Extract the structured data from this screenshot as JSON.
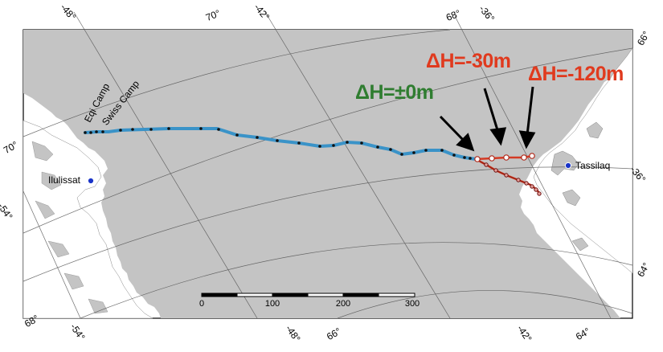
{
  "graticule_labels": {
    "top": [
      "-48°",
      "70°",
      "-42°",
      "68°",
      "-36°"
    ],
    "right": [
      "66°",
      "-36°",
      "64°"
    ],
    "left": [
      "70°",
      "-54°"
    ],
    "bottom": [
      "68°",
      "-54°",
      "-48°",
      "66°",
      "-42°",
      "64°"
    ]
  },
  "places": {
    "eqi_camp": "Eqi Camp",
    "swiss_camp": "Swiss Camp",
    "ilulissat": "Ilulissat",
    "tasiilaq": "Tassilaq"
  },
  "annotations": {
    "dh_zero": "ΔH=±0m",
    "dh_minus30": "ΔH=-30m",
    "dh_minus120": "ΔH=-120m"
  },
  "scale_bar": {
    "ticks": [
      "0",
      "100",
      "200",
      "300"
    ]
  },
  "colors": {
    "ice": "#c4c4c4",
    "land": "#ffffff",
    "traverse": "#3a93c8",
    "route_red": "#d43a24",
    "green_label": "#2f7d30",
    "red_label": "#e03a1e",
    "site_marker": "#1a34c8"
  }
}
